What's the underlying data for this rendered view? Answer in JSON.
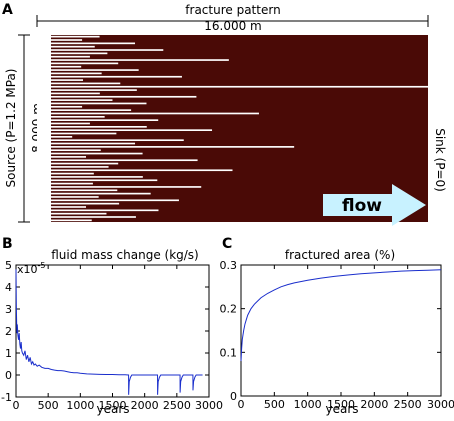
{
  "panels": {
    "a": {
      "letter": "A",
      "title": "fracture pattern",
      "width_label": "16.000 m",
      "height_label": "8.000 m",
      "source_label": "Source (P=1.2 MPa)",
      "sink_label": "Sink (P=0)",
      "flow_label": "flow"
    },
    "b": {
      "letter": "B"
    },
    "c": {
      "letter": "C"
    }
  },
  "colors": {
    "rock": "#4a0a06",
    "fracture": "#ffffff",
    "flow_arrow": "#c8f2ff",
    "trace": "#1a2ecc"
  },
  "chart_data": [
    {
      "type": "image",
      "title": "fracture pattern",
      "description_fields": {
        "fracture_lengths_fraction": [
          0.16,
          0.1,
          0.22,
          0.14,
          0.3,
          0.18,
          0.12,
          0.46,
          0.2,
          0.09,
          0.26,
          0.15,
          0.34,
          0.11,
          0.19,
          1.0,
          0.24,
          0.13,
          0.4,
          0.17,
          0.28,
          0.1,
          0.21,
          0.56,
          0.15,
          0.31,
          0.12,
          0.25,
          0.44,
          0.18,
          0.09,
          0.36,
          0.22,
          0.65,
          0.14,
          0.27,
          0.11,
          0.38,
          0.2,
          0.16,
          0.5,
          0.13,
          0.24,
          0.3,
          0.12,
          0.42,
          0.19,
          0.26,
          0.15,
          0.34,
          0.21,
          0.11,
          0.28,
          0.17,
          0.23,
          0.14
        ]
      }
    },
    {
      "type": "line",
      "title": "fluid mass change (kg/s)",
      "xlabel": "years",
      "ylabel": "",
      "y_multiplier_label": "x10",
      "y_multiplier_exp": "-5",
      "xlim": [
        0,
        3000
      ],
      "ylim": [
        -1,
        5
      ],
      "xticks": [
        0,
        500,
        1000,
        1500,
        2000,
        2500,
        3000
      ],
      "yticks": [
        -1,
        0,
        1,
        2,
        3,
        4,
        5
      ],
      "series": [
        {
          "x": [
            0,
            5,
            10,
            15,
            20,
            30,
            40,
            50,
            60,
            70,
            80,
            90,
            100,
            120,
            140,
            160,
            180,
            200,
            220,
            240,
            260,
            280,
            300,
            330,
            360,
            400,
            450,
            500,
            550,
            600,
            650,
            700,
            750,
            800,
            850,
            900,
            950,
            1000,
            1100,
            1200,
            1300,
            1400,
            1500,
            1600,
            1700,
            1750,
            1751,
            1760,
            1780,
            1800,
            1900,
            2000,
            2100,
            2200,
            2201,
            2210,
            2230,
            2250,
            2350,
            2450,
            2550,
            2551,
            2560,
            2580,
            2600,
            2700,
            2750,
            2751,
            2760,
            2780,
            2800,
            2850,
            2900
          ],
          "y": [
            4.8,
            3.2,
            2.4,
            1.9,
            2.3,
            1.8,
            1.6,
            1.9,
            1.4,
            1.2,
            1.5,
            1.1,
            1.0,
            0.9,
            1.1,
            0.7,
            0.9,
            0.6,
            0.8,
            0.5,
            0.6,
            0.45,
            0.5,
            0.4,
            0.45,
            0.35,
            0.3,
            0.3,
            0.25,
            0.22,
            0.2,
            0.2,
            0.18,
            0.15,
            0.12,
            0.1,
            0.1,
            0.08,
            0.05,
            0.04,
            0.03,
            0.02,
            0.02,
            0.01,
            0.01,
            0.0,
            -0.9,
            -0.3,
            -0.1,
            0.0,
            0.0,
            0.0,
            0.0,
            0.0,
            -0.9,
            -0.3,
            -0.1,
            0.0,
            0.0,
            0.0,
            0.0,
            -0.8,
            -0.3,
            -0.1,
            0.0,
            0.0,
            0.0,
            -0.7,
            -0.3,
            -0.1,
            0.0,
            0.0,
            0.0
          ]
        }
      ]
    },
    {
      "type": "line",
      "title": "fractured area (%)",
      "xlabel": "years",
      "ylabel": "",
      "xlim": [
        0,
        3000
      ],
      "ylim": [
        0,
        0.3
      ],
      "xticks": [
        0,
        500,
        1000,
        1500,
        2000,
        2500,
        3000
      ],
      "yticks": [
        0,
        0.1,
        0.2,
        0.3
      ],
      "ytick_labels": [
        "0",
        "0.1",
        "0.2",
        "0.3"
      ],
      "series": [
        {
          "x": [
            0,
            10,
            20,
            40,
            60,
            80,
            100,
            150,
            200,
            300,
            400,
            500,
            600,
            700,
            800,
            1000,
            1200,
            1400,
            1600,
            1800,
            2000,
            2200,
            2400,
            2600,
            2800,
            3000
          ],
          "y": [
            0.08,
            0.11,
            0.13,
            0.15,
            0.165,
            0.175,
            0.185,
            0.2,
            0.21,
            0.225,
            0.235,
            0.243,
            0.25,
            0.255,
            0.259,
            0.265,
            0.27,
            0.274,
            0.277,
            0.28,
            0.282,
            0.284,
            0.286,
            0.287,
            0.288,
            0.289
          ]
        }
      ]
    }
  ]
}
